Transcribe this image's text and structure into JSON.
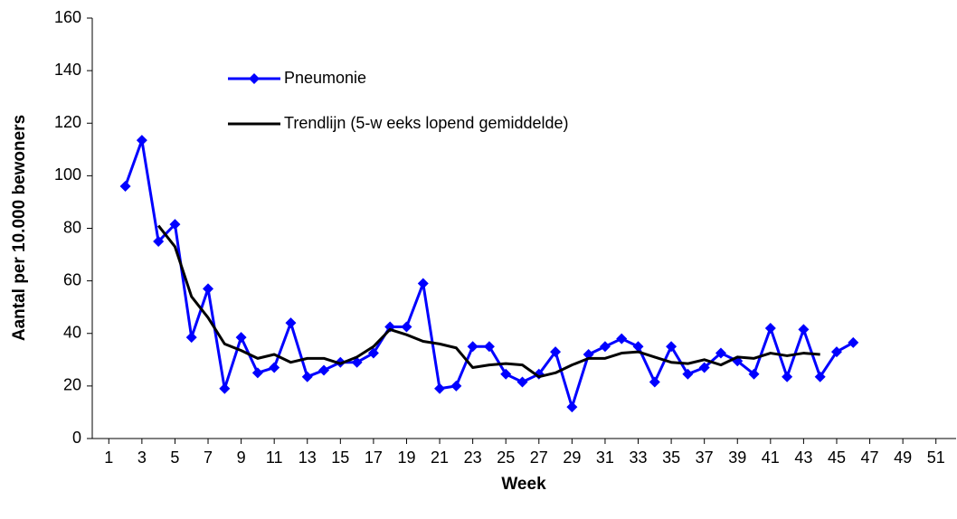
{
  "chart_data": {
    "type": "line",
    "x_label": "Week",
    "y_label": "Aantal per 10.000 bewoners",
    "x": [
      2,
      3,
      4,
      5,
      6,
      7,
      8,
      9,
      10,
      11,
      12,
      13,
      14,
      15,
      16,
      17,
      18,
      19,
      20,
      21,
      22,
      23,
      24,
      25,
      26,
      27,
      28,
      29,
      30,
      31,
      32,
      33,
      34,
      35,
      36,
      37,
      38,
      39,
      40,
      41,
      42,
      43,
      44,
      45,
      46
    ],
    "series": [
      {
        "name": "Pneumonie",
        "color": "#0000ff",
        "marker": "diamond",
        "values": [
          96,
          113.5,
          75,
          81.5,
          38.5,
          57,
          19,
          38.5,
          25,
          27,
          44,
          23.5,
          26,
          29,
          29,
          32.5,
          42.5,
          42.5,
          59,
          19,
          20,
          35,
          35,
          24.5,
          21.5,
          24.5,
          33,
          12,
          32,
          35,
          38,
          35,
          21.5,
          35,
          24.5,
          27,
          32.5,
          29.5,
          24.5,
          42,
          23.5,
          41.5,
          23.5,
          33,
          36.5
        ]
      },
      {
        "name": "Trendlijn (5-w eeks lopend gemiddelde)",
        "color": "#000000",
        "values": [
          null,
          null,
          81,
          73,
          54,
          46,
          36,
          33.5,
          30.5,
          32,
          29,
          30.5,
          30.5,
          28.5,
          31,
          35,
          41.5,
          39.5,
          37,
          36,
          34.5,
          27,
          28,
          28.5,
          28,
          23.5,
          25,
          28,
          30.5,
          30.5,
          32.5,
          33,
          31,
          29,
          28.5,
          30,
          28,
          31,
          30.5,
          32.5,
          31.5,
          32.5,
          32,
          null,
          null
        ]
      }
    ],
    "xlim": [
      0,
      52
    ],
    "xticks": [
      1,
      3,
      5,
      7,
      9,
      11,
      13,
      15,
      17,
      19,
      21,
      23,
      25,
      27,
      29,
      31,
      33,
      35,
      37,
      39,
      41,
      43,
      45,
      47,
      49,
      51
    ],
    "ylim": [
      0,
      160
    ],
    "yticks": [
      0,
      20,
      40,
      60,
      80,
      100,
      120,
      140,
      160
    ],
    "grid": false,
    "legend": "upper left"
  }
}
